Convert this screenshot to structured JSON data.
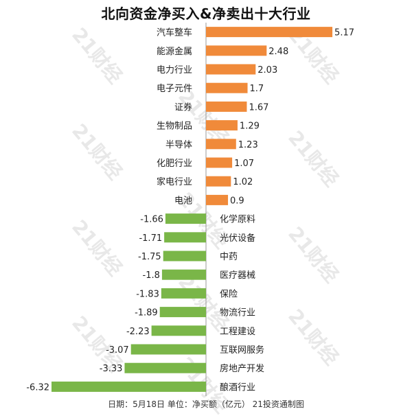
{
  "title": "北向资金净买入&净卖出十大行业",
  "footer": "日期：5月18日 单位：净买额（亿元） 21投资通制图",
  "watermark": "21财经",
  "colors": {
    "positive": "#F08A3A",
    "negative": "#7AB648",
    "axis": "#999999",
    "label": "#222222"
  },
  "chart_data": {
    "type": "bar",
    "orientation": "horizontal",
    "categories": [
      "汽车整车",
      "能源金属",
      "电力行业",
      "电子元件",
      "证券",
      "生物制品",
      "半导体",
      "化肥行业",
      "家电行业",
      "电池",
      "化学原料",
      "光伏设备",
      "中药",
      "医疗器械",
      "保险",
      "物流行业",
      "工程建设",
      "互联网服务",
      "房地产开发",
      "酿酒行业"
    ],
    "values": [
      5.17,
      2.48,
      2.03,
      1.7,
      1.67,
      1.29,
      1.23,
      1.07,
      1.02,
      0.9,
      -1.66,
      -1.71,
      -1.75,
      -1.8,
      -1.83,
      -1.89,
      -2.23,
      -3.07,
      -3.33,
      -6.32
    ],
    "value_labels": [
      "5.17",
      "2.48",
      "2.03",
      "1.7",
      "1.67",
      "1.29",
      "1.23",
      "1.07",
      "1.02",
      "0.9",
      "-1.66",
      "-1.71",
      "-1.75",
      "-1.8",
      "-1.83",
      "-1.89",
      "-2.23",
      "-3.07",
      "-3.33",
      "-6.32"
    ],
    "xlabel": "",
    "ylabel": "",
    "xlim": [
      -6.32,
      5.17
    ],
    "grid": false,
    "legend": "none"
  }
}
